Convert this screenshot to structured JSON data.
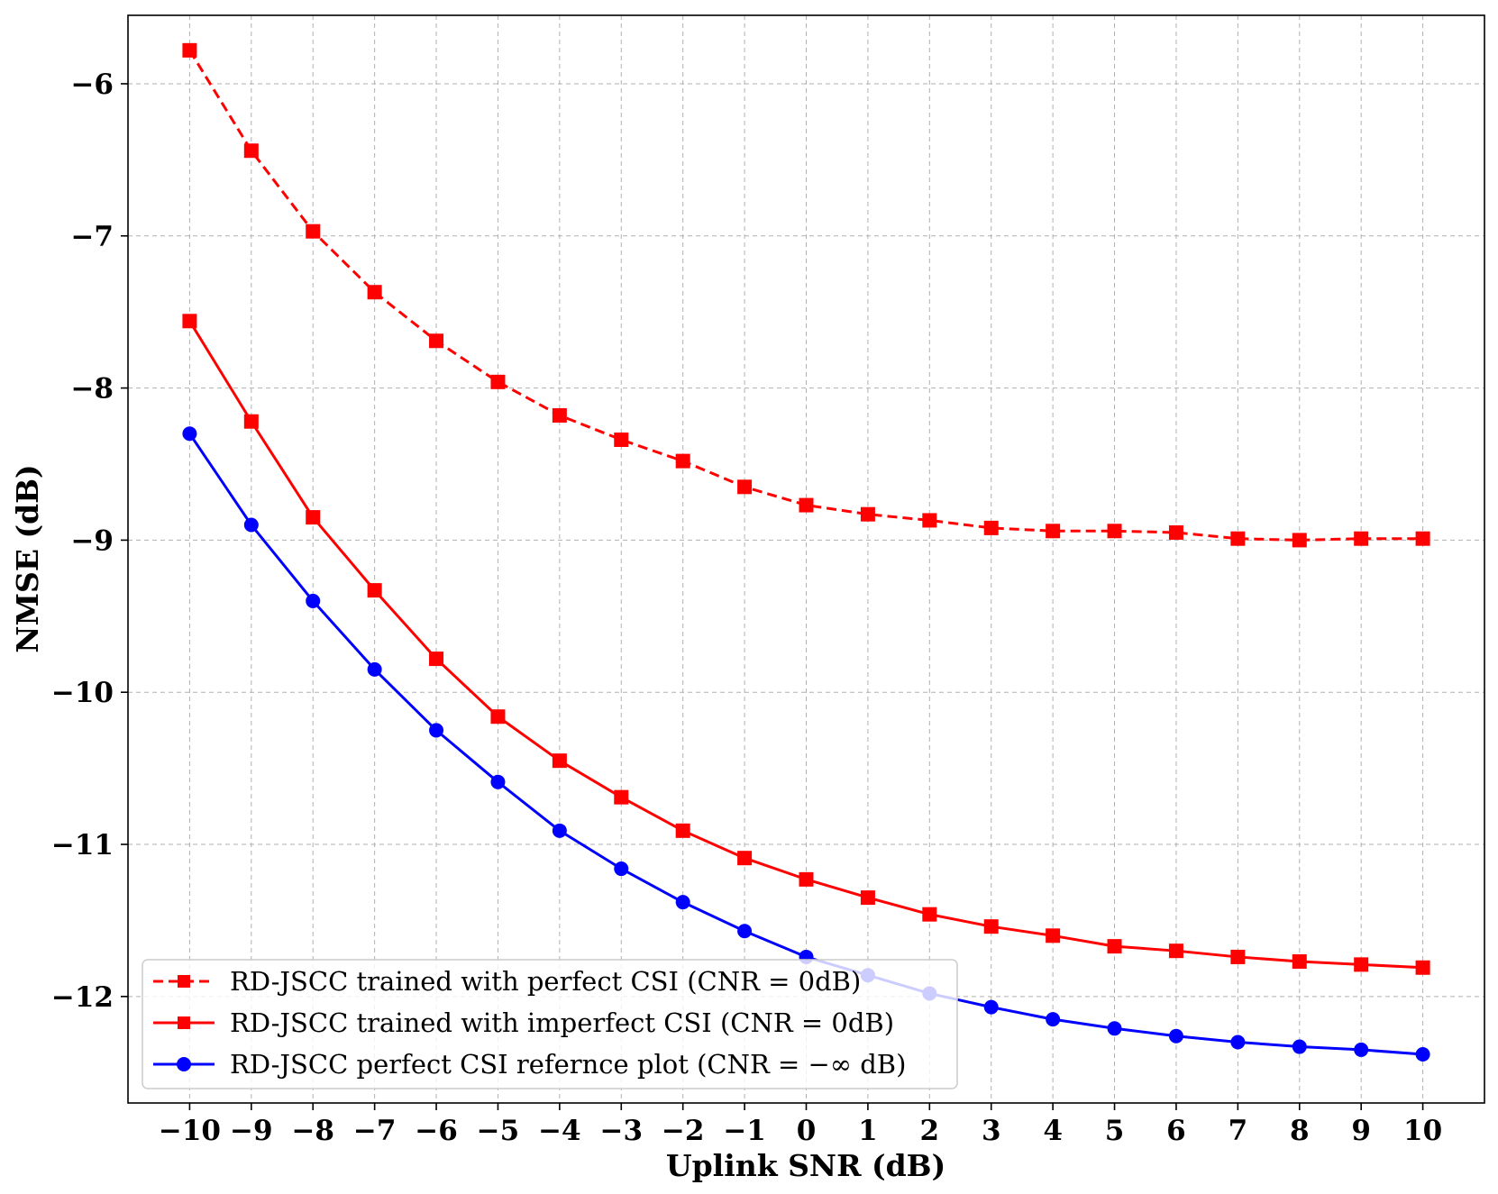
{
  "chart_data": {
    "type": "line",
    "title": "",
    "xlabel": "Uplink SNR (dB)",
    "ylabel": "NMSE (dB)",
    "xlim": [
      -11,
      11
    ],
    "ylim": [
      -12.7,
      -5.55
    ],
    "grid": true,
    "legend_position": "lower-left",
    "x": [
      -10,
      -9,
      -8,
      -7,
      -6,
      -5,
      -4,
      -3,
      -2,
      -1,
      0,
      1,
      2,
      3,
      4,
      5,
      6,
      7,
      8,
      9,
      10
    ],
    "x_tick_labels": [
      "−10",
      "−9",
      "−8",
      "−7",
      "−6",
      "−5",
      "−4",
      "−3",
      "−2",
      "−1",
      "0",
      "1",
      "2",
      "3",
      "4",
      "5",
      "6",
      "7",
      "8",
      "9",
      "10"
    ],
    "y_ticks": [
      -6,
      -7,
      -8,
      -9,
      -10,
      -11,
      -12
    ],
    "y_tick_labels": [
      "−6",
      "−7",
      "−8",
      "−9",
      "−10",
      "−11",
      "−12"
    ],
    "series": [
      {
        "name": "RD-JSCC trained with perfect CSI (CNR = 0dB)",
        "color": "#ff0000",
        "line_style": "dashed",
        "marker": "square",
        "values": [
          -5.78,
          -6.44,
          -6.97,
          -7.37,
          -7.69,
          -7.96,
          -8.18,
          -8.34,
          -8.48,
          -8.65,
          -8.77,
          -8.83,
          -8.87,
          -8.92,
          -8.94,
          -8.94,
          -8.95,
          -8.99,
          -9.0,
          -8.99,
          -8.99
        ]
      },
      {
        "name": "RD-JSCC trained with imperfect CSI (CNR = 0dB)",
        "color": "#ff0000",
        "line_style": "solid",
        "marker": "square",
        "values": [
          -7.56,
          -8.22,
          -8.85,
          -9.33,
          -9.78,
          -10.16,
          -10.45,
          -10.69,
          -10.91,
          -11.09,
          -11.23,
          -11.35,
          -11.46,
          -11.54,
          -11.6,
          -11.67,
          -11.7,
          -11.74,
          -11.77,
          -11.79,
          -11.81
        ]
      },
      {
        "name": "RD-JSCC perfect CSI refernce plot (CNR = −∞ dB)",
        "color": "#0000ff",
        "line_style": "solid",
        "marker": "circle",
        "values": [
          -8.3,
          -8.9,
          -9.4,
          -9.85,
          -10.25,
          -10.59,
          -10.91,
          -11.16,
          -11.38,
          -11.57,
          -11.74,
          -11.86,
          -11.98,
          -12.07,
          -12.15,
          -12.21,
          -12.26,
          -12.3,
          -12.33,
          -12.35,
          -12.38
        ]
      }
    ]
  }
}
